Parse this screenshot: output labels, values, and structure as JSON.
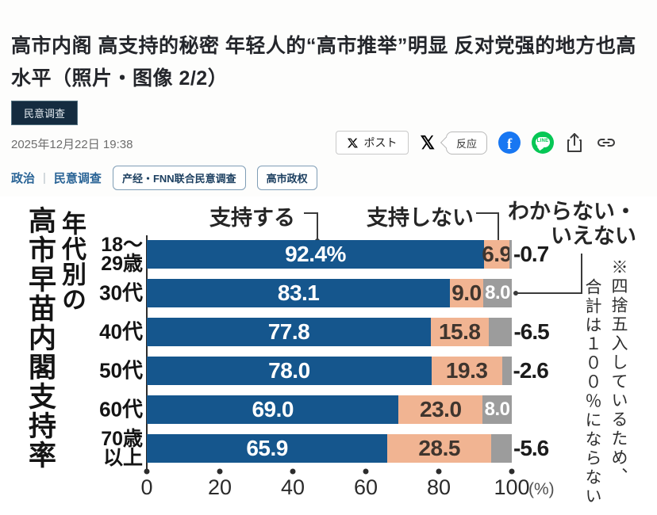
{
  "header": {
    "title": "高市内阁 高支持的秘密 年轻人的“高市推举”明显 反对党强的地方也高水平（照片・图像 2/2）",
    "category_badge": "民意调查",
    "date": "2025年12月22日 19:38",
    "share": {
      "x_post_label": "ポスト",
      "x_logo": "𝕏",
      "reaction_label": "反应",
      "facebook_glyph": "f",
      "line_word": "LINE"
    },
    "breadcrumb": [
      "政治",
      "民意调查"
    ],
    "tags": [
      "产经・FNN联合民意调查",
      "高市政权"
    ]
  },
  "chart_data": {
    "type": "bar",
    "orientation": "horizontal",
    "stacked": true,
    "title": "年代別の高市早苗内閣支持率",
    "title_col_main": "高市早苗内閣支持率",
    "title_col_sub": "年代別の",
    "legend": {
      "support": "支持する",
      "oppose": "支持しない",
      "unknown_line1": "わからない・",
      "unknown_line2": "いえない"
    },
    "colors": {
      "support": "#15568d",
      "oppose": "#f1b492",
      "unknown": "#9c9c9c"
    },
    "x_ticks": [
      0,
      20,
      40,
      60,
      80,
      100
    ],
    "x_unit": "(%)",
    "xlim": [
      0,
      100
    ],
    "note_lines": [
      "※四捨五入しているため、",
      "合計は１００％にならない"
    ],
    "categories": [
      "18〜29歳",
      "30代",
      "40代",
      "50代",
      "60代",
      "70歳以上"
    ],
    "rows": [
      {
        "label_lines": "18〜\n29歳",
        "support": 92.4,
        "support_display": "92.4%",
        "oppose": 6.9,
        "oppose_display": "6.9",
        "unknown": 0.7,
        "unknown_display": "0.7",
        "unknown_inside": false
      },
      {
        "label_lines": "30代",
        "support": 83.1,
        "support_display": "83.1",
        "oppose": 9.0,
        "oppose_display": "9.0",
        "unknown": 8.0,
        "unknown_display": "8.0",
        "unknown_inside": true
      },
      {
        "label_lines": "40代",
        "support": 77.8,
        "support_display": "77.8",
        "oppose": 15.8,
        "oppose_display": "15.8",
        "unknown": 6.5,
        "unknown_display": "6.5",
        "unknown_inside": false
      },
      {
        "label_lines": "50代",
        "support": 78.0,
        "support_display": "78.0",
        "oppose": 19.3,
        "oppose_display": "19.3",
        "unknown": 2.6,
        "unknown_display": "2.6",
        "unknown_inside": false
      },
      {
        "label_lines": "60代",
        "support": 69.0,
        "support_display": "69.0",
        "oppose": 23.0,
        "oppose_display": "23.0",
        "unknown": 8.0,
        "unknown_display": "8.0",
        "unknown_inside": true
      },
      {
        "label_lines": "70歳\n以上",
        "support": 65.9,
        "support_display": "65.9",
        "oppose": 28.5,
        "oppose_display": "28.5",
        "unknown": 5.6,
        "unknown_display": "5.6",
        "unknown_inside": false
      }
    ]
  }
}
